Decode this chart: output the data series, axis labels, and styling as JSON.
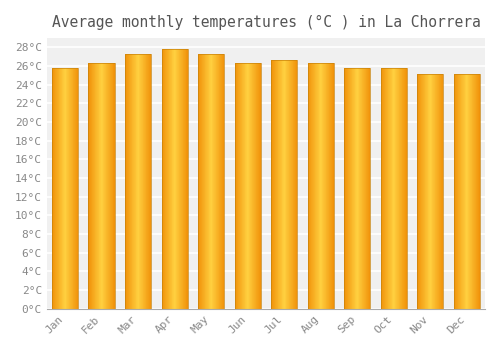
{
  "title": "Average monthly temperatures (°C ) in La Chorrera",
  "months": [
    "Jan",
    "Feb",
    "Mar",
    "Apr",
    "May",
    "Jun",
    "Jul",
    "Aug",
    "Sep",
    "Oct",
    "Nov",
    "Dec"
  ],
  "temperatures": [
    25.8,
    26.3,
    27.3,
    27.8,
    27.3,
    26.3,
    26.7,
    26.3,
    25.8,
    25.8,
    25.2,
    25.2
  ],
  "bar_color_center": "#FFD040",
  "bar_color_edge": "#F0920A",
  "ylim": [
    0,
    29
  ],
  "yticks": [
    0,
    2,
    4,
    6,
    8,
    10,
    12,
    14,
    16,
    18,
    20,
    22,
    24,
    26,
    28
  ],
  "background_color": "#ffffff",
  "plot_bg_color": "#f0f0f0",
  "grid_color": "#ffffff",
  "title_fontsize": 10.5,
  "tick_fontsize": 8,
  "bar_width": 0.72
}
